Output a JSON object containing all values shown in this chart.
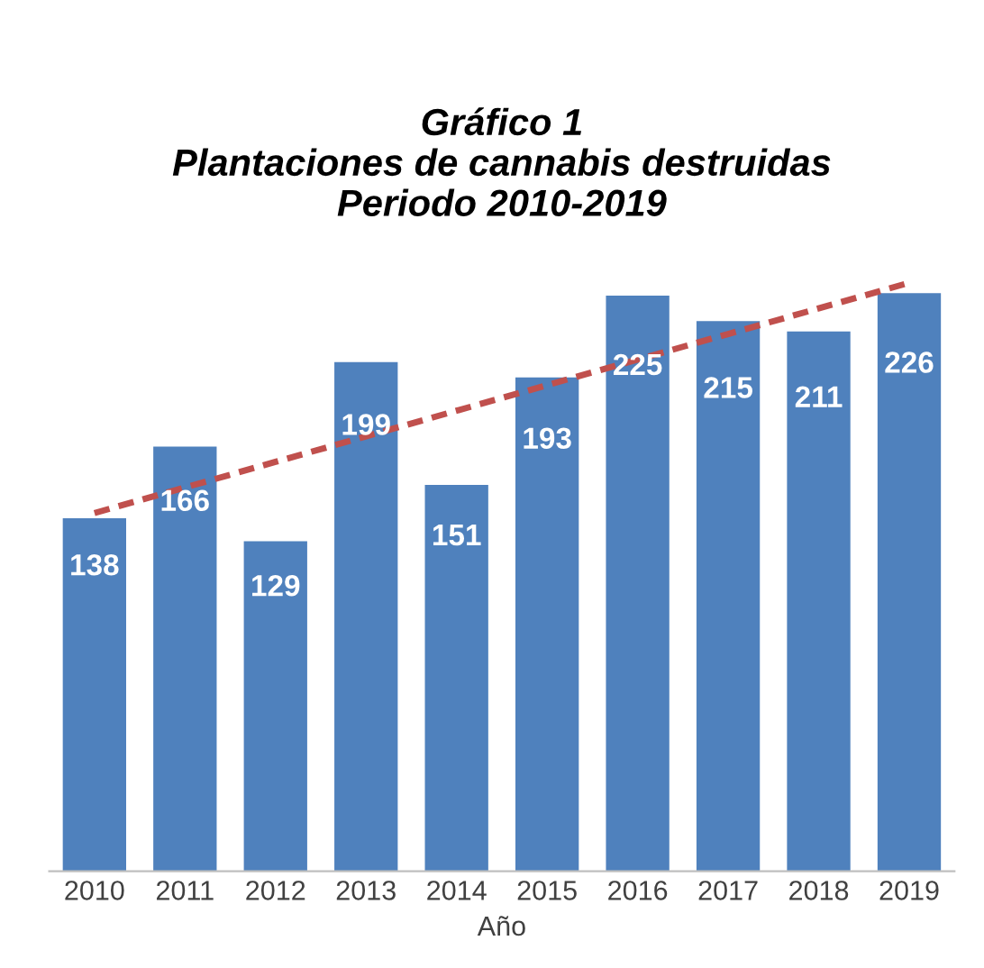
{
  "chart_data": {
    "type": "bar",
    "title": "Gráfico 1\nPlantaciones de cannabis destruidas\nPeriodo 2010-2019",
    "xlabel": "Año",
    "categories": [
      "2010",
      "2011",
      "2012",
      "2013",
      "2014",
      "2015",
      "2016",
      "2017",
      "2018",
      "2019"
    ],
    "series": [
      {
        "color": "#4f81bd",
        "values": [
          138,
          166,
          129,
          199,
          151,
          193,
          225,
          215,
          211,
          226
        ],
        "value_labels": [
          "138",
          "166",
          "129",
          "199",
          "151",
          "193",
          "225",
          "215",
          "211",
          "226"
        ]
      },
      {
        "type": "line",
        "color": "#c0504d",
        "line_style": "dashed",
        "values": [
          140,
          150,
          160,
          170,
          180,
          190,
          200,
          210,
          220,
          230
        ]
      }
    ],
    "grid": false,
    "legend": false
  }
}
